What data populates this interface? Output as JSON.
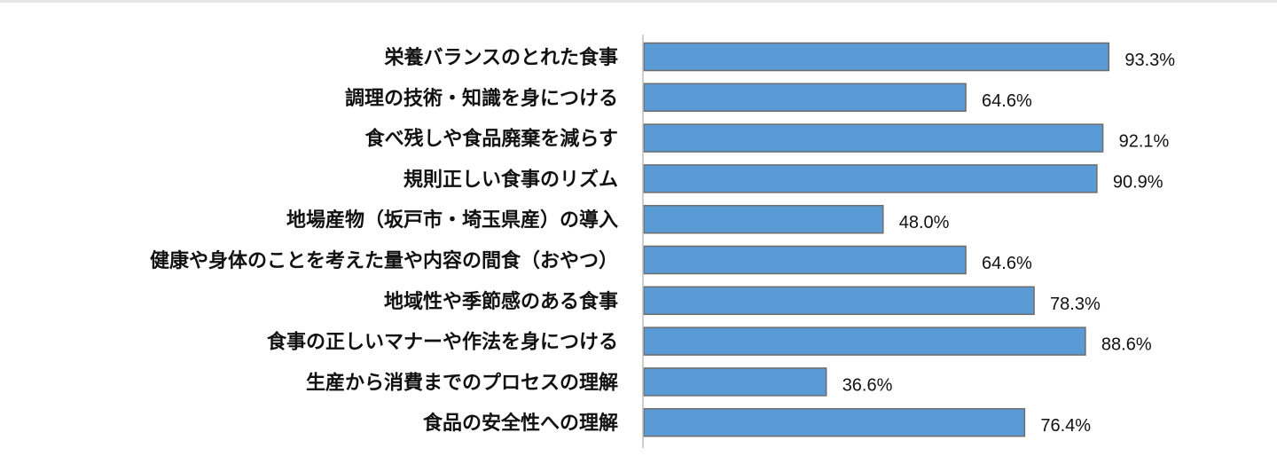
{
  "chart_data": {
    "type": "bar",
    "orientation": "horizontal",
    "categories": [
      "栄養バランスのとれた食事",
      "調理の技術・知識を身につける",
      "食べ残しや食品廃棄を減らす",
      "規則正しい食事のリズム",
      "地場産物（坂戸市・埼玉県産）の導入",
      "健康や身体のことを考えた量や内容の間食（おやつ）",
      "地域性や季節感のある食事",
      "食事の正しいマナーや作法を身につける",
      "生産から消費までのプロセスの理解",
      "食品の安全性への理解"
    ],
    "values": [
      93.3,
      64.6,
      92.1,
      90.9,
      48.0,
      64.6,
      78.3,
      88.6,
      36.6,
      76.4
    ],
    "value_labels": [
      "93.3%",
      "64.6%",
      "92.1%",
      "90.9%",
      "48.0%",
      "64.6%",
      "78.3%",
      "88.6%",
      "36.6%",
      "76.4%"
    ],
    "title": "",
    "xlabel": "",
    "ylabel": "",
    "xlim": [
      0,
      100
    ],
    "grid": false,
    "legend": "none",
    "bar_color": "#5b9bd5",
    "bar_border_color": "#6d6d6d",
    "axis_color": "#bfbfbf"
  }
}
